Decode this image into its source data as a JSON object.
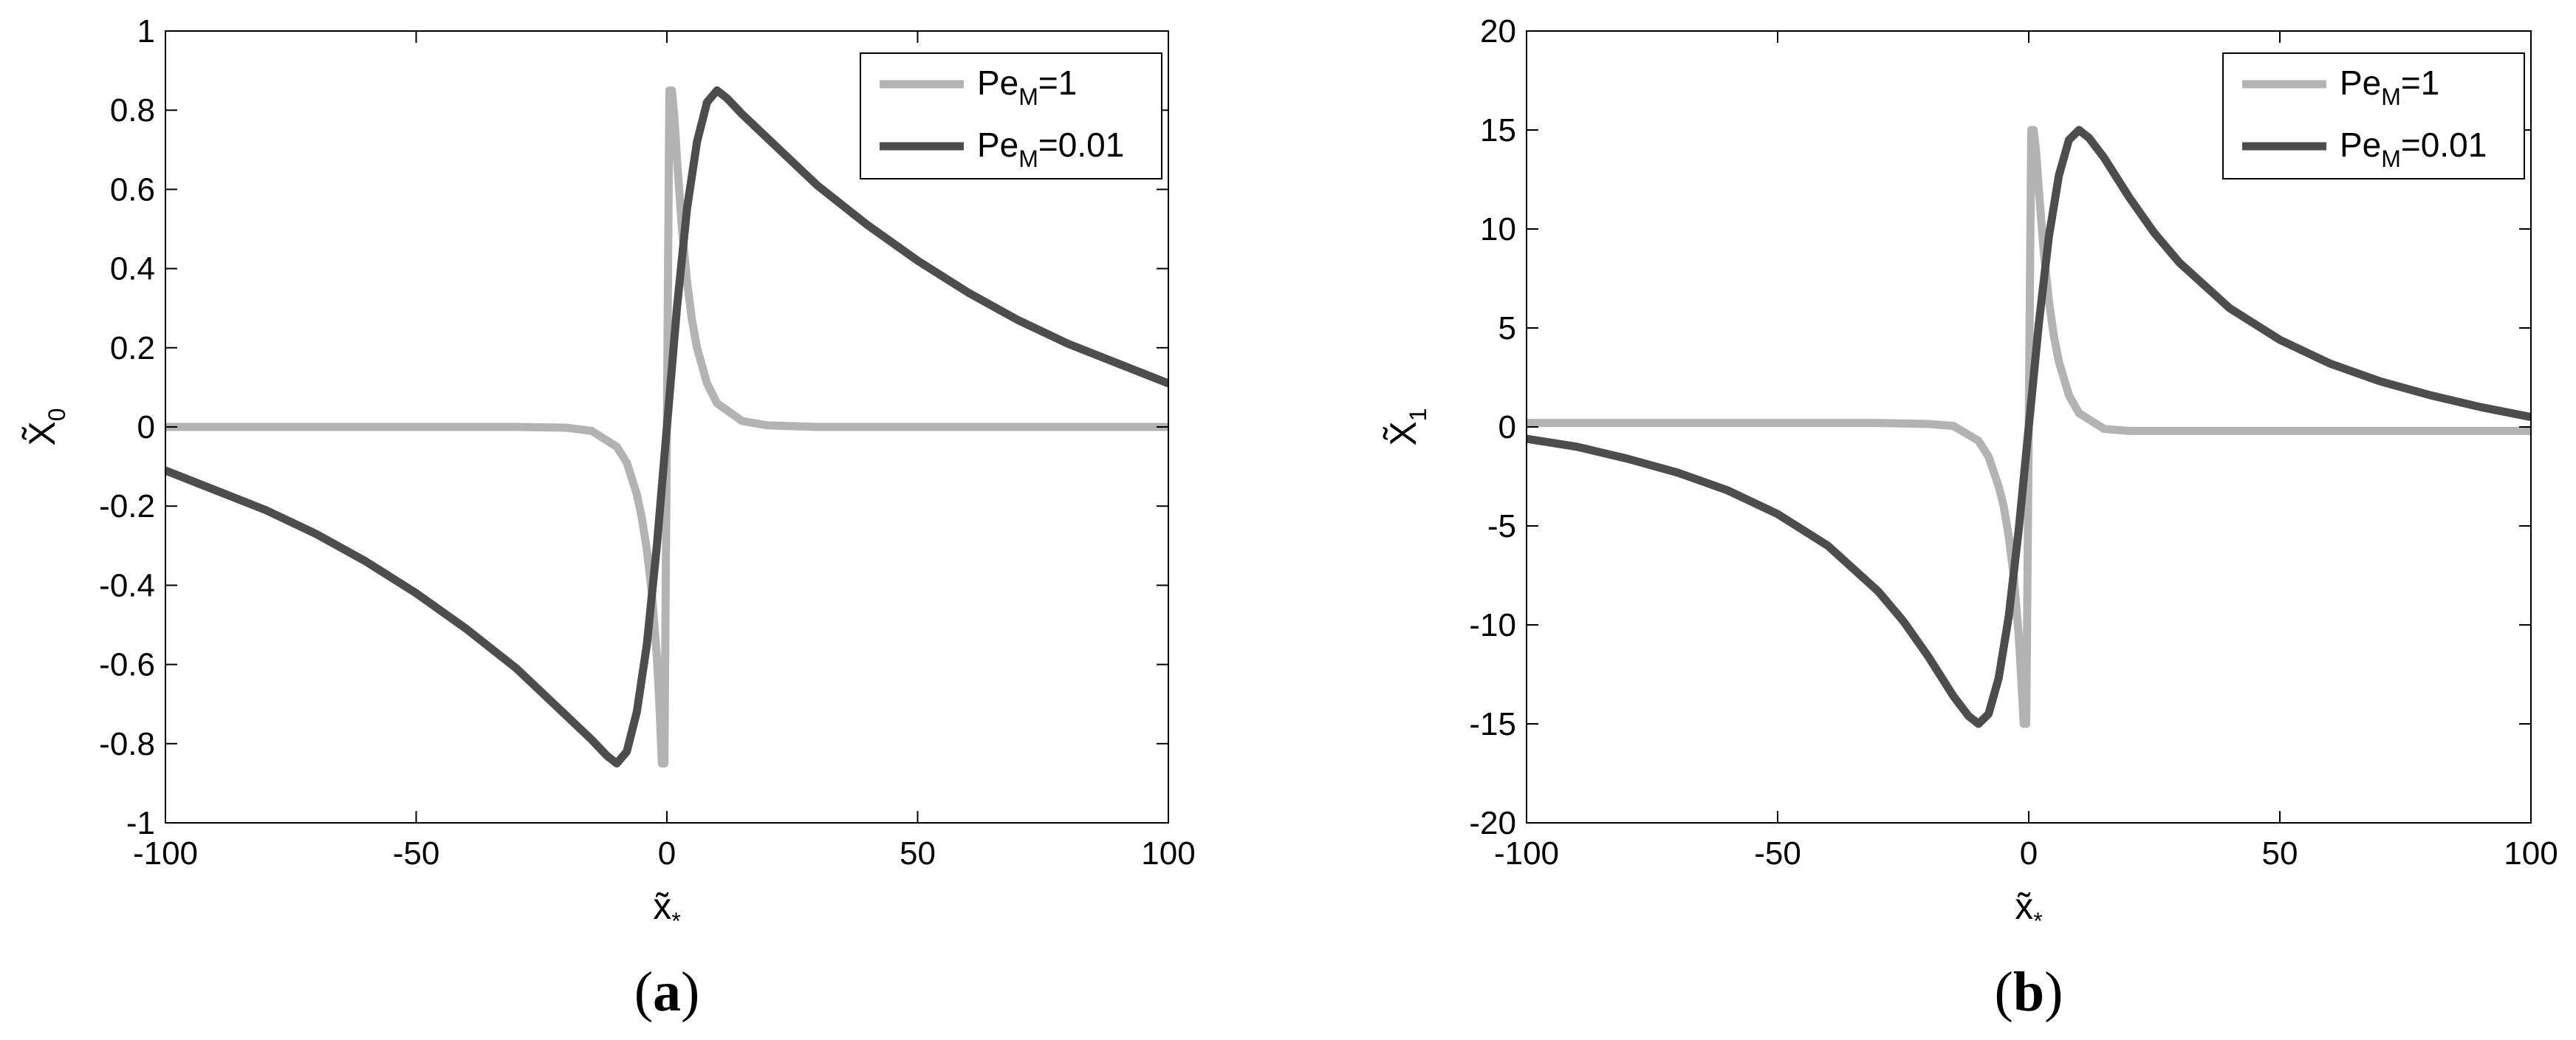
{
  "chart_data": [
    {
      "type": "line",
      "panel_label": "a",
      "xlabel": {
        "base": "x̃",
        "sub": "*"
      },
      "ylabel": {
        "base": "X̃",
        "sub": "0"
      },
      "xlim": [
        -100,
        100
      ],
      "ylim": [
        -1,
        1
      ],
      "xticks": [
        -100,
        -50,
        0,
        50,
        100
      ],
      "xtick_labels": [
        "-100",
        "-50",
        "0",
        "50",
        "100"
      ],
      "yticks": [
        -1,
        -0.8,
        -0.6,
        -0.4,
        -0.2,
        0,
        0.2,
        0.4,
        0.6,
        0.8,
        1
      ],
      "ytick_labels": [
        "-1",
        "-0.8",
        "-0.6",
        "-0.4",
        "-0.2",
        "0",
        "0.2",
        "0.4",
        "0.6",
        "0.8",
        "1"
      ],
      "grid": false,
      "legend_position": "top-right",
      "series": [
        {
          "name": {
            "base": "Pe",
            "sub": "M",
            "rest": "=1"
          },
          "color": "#b3b3b3",
          "x": [
            -100,
            -60,
            -30,
            -20,
            -15,
            -10,
            -8,
            -6,
            -5,
            -4,
            -3,
            -2,
            -1.5,
            -1,
            -0.5,
            0,
            0.5,
            1,
            1.5,
            2,
            3,
            4,
            5,
            6,
            8,
            10,
            15,
            20,
            30,
            60,
            100
          ],
          "y": [
            0,
            0,
            0,
            -0.002,
            -0.01,
            -0.05,
            -0.09,
            -0.17,
            -0.23,
            -0.31,
            -0.42,
            -0.58,
            -0.7,
            -0.85,
            -0.85,
            0,
            0.85,
            0.85,
            0.78,
            0.68,
            0.5,
            0.37,
            0.27,
            0.2,
            0.11,
            0.06,
            0.015,
            0.004,
            0,
            0,
            0
          ]
        },
        {
          "name": {
            "base": "Pe",
            "sub": "M",
            "rest": "=0.01"
          },
          "color": "#4d4d4d",
          "x": [
            -100,
            -90,
            -80,
            -70,
            -60,
            -50,
            -40,
            -30,
            -25,
            -20,
            -15,
            -12,
            -10,
            -8,
            -6,
            -4,
            -2,
            0,
            2,
            4,
            6,
            8,
            10,
            12,
            15,
            20,
            25,
            30,
            40,
            50,
            60,
            70,
            80,
            90,
            100
          ],
          "y": [
            -0.11,
            -0.16,
            -0.21,
            -0.27,
            -0.34,
            -0.42,
            -0.51,
            -0.61,
            -0.67,
            -0.73,
            -0.79,
            -0.83,
            -0.85,
            -0.82,
            -0.72,
            -0.55,
            -0.3,
            0,
            0.3,
            0.55,
            0.72,
            0.82,
            0.85,
            0.83,
            0.79,
            0.73,
            0.67,
            0.61,
            0.51,
            0.42,
            0.34,
            0.27,
            0.21,
            0.16,
            0.11
          ]
        }
      ]
    },
    {
      "type": "line",
      "panel_label": "b",
      "xlabel": {
        "base": "x̃",
        "sub": "*"
      },
      "ylabel": {
        "base": "X̃",
        "sub": "1"
      },
      "xlim": [
        -100,
        100
      ],
      "ylim": [
        -20,
        20
      ],
      "xticks": [
        -100,
        -50,
        0,
        50,
        100
      ],
      "xtick_labels": [
        "-100",
        "-50",
        "0",
        "50",
        "100"
      ],
      "yticks": [
        -20,
        -15,
        -10,
        -5,
        0,
        5,
        10,
        15,
        20
      ],
      "ytick_labels": [
        "-20",
        "-15",
        "-10",
        "-5",
        "0",
        "5",
        "10",
        "15",
        "20"
      ],
      "grid": false,
      "legend_position": "top-right",
      "series": [
        {
          "name": {
            "base": "Pe",
            "sub": "M",
            "rest": "=1"
          },
          "color": "#b3b3b3",
          "x": [
            -100,
            -60,
            -30,
            -20,
            -15,
            -10,
            -8,
            -6,
            -5,
            -4,
            -3,
            -2,
            -1.5,
            -1,
            -0.5,
            0,
            0.5,
            1,
            1.5,
            2,
            3,
            4,
            5,
            6,
            8,
            10,
            15,
            20,
            30,
            60,
            100
          ],
          "y": [
            0.2,
            0.2,
            0.2,
            0.15,
            0.05,
            -0.7,
            -1.5,
            -3,
            -4,
            -5.5,
            -7.5,
            -10.5,
            -12.7,
            -15,
            -15,
            0,
            15,
            15,
            13.8,
            12,
            8.8,
            6.4,
            4.6,
            3.3,
            1.6,
            0.7,
            -0.1,
            -0.2,
            -0.2,
            -0.2,
            -0.2
          ]
        },
        {
          "name": {
            "base": "Pe",
            "sub": "M",
            "rest": "=0.01"
          },
          "color": "#4d4d4d",
          "x": [
            -100,
            -90,
            -80,
            -70,
            -60,
            -50,
            -40,
            -30,
            -25,
            -20,
            -15,
            -12,
            -10,
            -8,
            -6,
            -4,
            -2,
            0,
            2,
            4,
            6,
            8,
            10,
            12,
            15,
            20,
            25,
            30,
            40,
            50,
            60,
            70,
            80,
            90,
            100
          ],
          "y": [
            -0.6,
            -1,
            -1.6,
            -2.3,
            -3.2,
            -4.4,
            -6,
            -8.3,
            -9.8,
            -11.6,
            -13.6,
            -14.6,
            -15,
            -14.5,
            -12.7,
            -9.6,
            -5.2,
            0,
            5.2,
            9.6,
            12.7,
            14.5,
            15,
            14.6,
            13.6,
            11.6,
            9.8,
            8.3,
            6,
            4.4,
            3.2,
            2.3,
            1.6,
            1,
            0.5
          ]
        }
      ]
    }
  ]
}
